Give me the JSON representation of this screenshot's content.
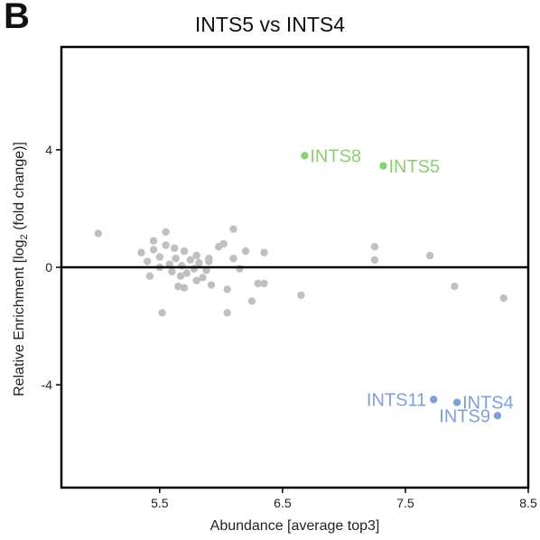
{
  "panel_letter": "B",
  "chart_data": {
    "type": "scatter",
    "title": "INTS5 vs INTS4",
    "xlabel": "Abundance [average top3]",
    "ylabel_parts": [
      "Relative Enrichment [log",
      "2",
      " (fold change)]"
    ],
    "xlim": [
      4.7,
      8.5
    ],
    "ylim": [
      -7.5,
      7.5
    ],
    "x_ticks": [
      5.5,
      6.5,
      7.5,
      8.5
    ],
    "x_tick_labels": [
      "5.5",
      "6.5",
      "7.5",
      "8.5"
    ],
    "y_ticks": [
      4,
      0,
      -4
    ],
    "y_tick_labels": [
      "4",
      "0",
      "-4"
    ],
    "zero_line": true,
    "grid": false,
    "colors": {
      "background_points": "#c0c0c0",
      "enriched": "#8fcf73",
      "depleted": "#7f9fd9",
      "axis": "#000000"
    },
    "points": [
      {
        "x": 5.0,
        "y": 1.15
      },
      {
        "x": 5.35,
        "y": 0.5
      },
      {
        "x": 5.4,
        "y": 0.2
      },
      {
        "x": 5.42,
        "y": -0.3
      },
      {
        "x": 5.45,
        "y": 0.6
      },
      {
        "x": 5.45,
        "y": 0.9
      },
      {
        "x": 5.5,
        "y": 0.35
      },
      {
        "x": 5.5,
        "y": 0.0
      },
      {
        "x": 5.52,
        "y": -1.55
      },
      {
        "x": 5.55,
        "y": 0.75
      },
      {
        "x": 5.55,
        "y": 1.2
      },
      {
        "x": 5.58,
        "y": 0.1
      },
      {
        "x": 5.6,
        "y": -0.15
      },
      {
        "x": 5.62,
        "y": 0.65
      },
      {
        "x": 5.63,
        "y": 0.3
      },
      {
        "x": 5.65,
        "y": -0.65
      },
      {
        "x": 5.67,
        "y": -0.3
      },
      {
        "x": 5.68,
        "y": 0.05
      },
      {
        "x": 5.7,
        "y": -0.7
      },
      {
        "x": 5.7,
        "y": 0.55
      },
      {
        "x": 5.72,
        "y": -0.2
      },
      {
        "x": 5.75,
        "y": 0.25
      },
      {
        "x": 5.78,
        "y": -0.05
      },
      {
        "x": 5.8,
        "y": 0.4
      },
      {
        "x": 5.8,
        "y": -0.45
      },
      {
        "x": 5.82,
        "y": 0.15
      },
      {
        "x": 5.85,
        "y": -0.35
      },
      {
        "x": 5.88,
        "y": -0.1
      },
      {
        "x": 5.9,
        "y": 0.2
      },
      {
        "x": 5.9,
        "y": 0.3
      },
      {
        "x": 5.92,
        "y": -0.6
      },
      {
        "x": 5.98,
        "y": 0.7
      },
      {
        "x": 6.02,
        "y": 0.8
      },
      {
        "x": 6.05,
        "y": -0.75
      },
      {
        "x": 6.05,
        "y": -1.55
      },
      {
        "x": 6.1,
        "y": 0.3
      },
      {
        "x": 6.1,
        "y": 1.3
      },
      {
        "x": 6.15,
        "y": -0.05
      },
      {
        "x": 6.2,
        "y": 0.55
      },
      {
        "x": 6.25,
        "y": -1.15
      },
      {
        "x": 6.3,
        "y": -0.55
      },
      {
        "x": 6.35,
        "y": 0.5
      },
      {
        "x": 6.35,
        "y": -0.55
      },
      {
        "x": 6.65,
        "y": -0.95
      },
      {
        "x": 7.25,
        "y": 0.7
      },
      {
        "x": 7.25,
        "y": 0.25
      },
      {
        "x": 7.7,
        "y": 0.4
      },
      {
        "x": 7.9,
        "y": -0.65
      },
      {
        "x": 8.3,
        "y": -1.05
      }
    ],
    "annotated_points": [
      {
        "label": "INTS8",
        "x": 6.68,
        "y": 3.8,
        "group": "enriched",
        "side": "right"
      },
      {
        "label": "INTS5",
        "x": 7.32,
        "y": 3.45,
        "group": "enriched",
        "side": "right"
      },
      {
        "label": "INTS11",
        "x": 7.73,
        "y": -4.5,
        "group": "depleted",
        "side": "left"
      },
      {
        "label": "INTS4",
        "x": 7.92,
        "y": -4.6,
        "group": "depleted",
        "side": "right"
      },
      {
        "label": "INTS9",
        "x": 8.25,
        "y": -5.05,
        "group": "depleted",
        "side": "left"
      }
    ]
  }
}
